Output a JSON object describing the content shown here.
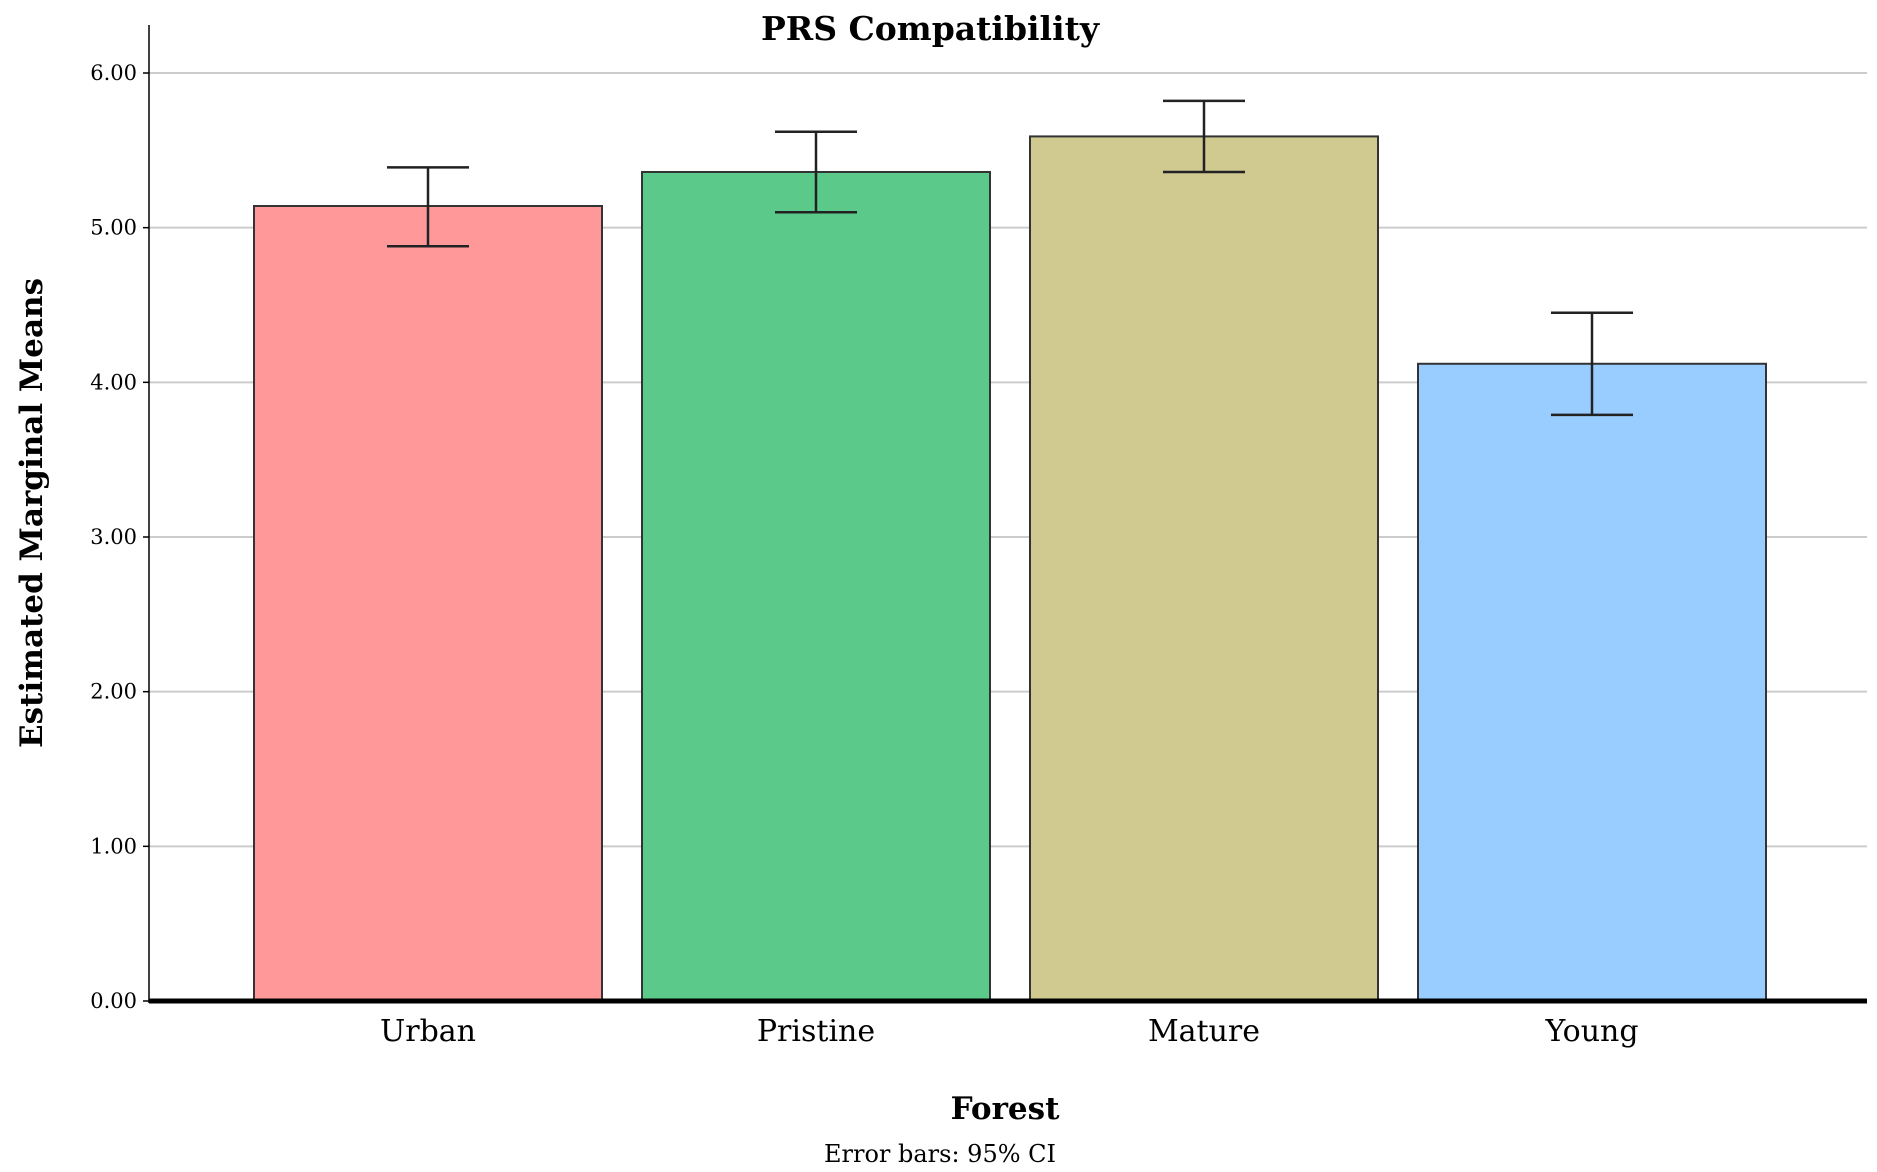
{
  "chart_data": {
    "type": "bar",
    "title": "PRS Compatibility",
    "xlabel": "Forest",
    "ylabel": "Estimated Marginal Means",
    "categories": [
      "Urban",
      "Pristine",
      "Mature",
      "Young"
    ],
    "values": [
      5.14,
      5.36,
      5.59,
      4.12
    ],
    "ci_lower": [
      4.88,
      5.1,
      5.36,
      3.79
    ],
    "ci_upper": [
      5.39,
      5.62,
      5.82,
      4.45
    ],
    "colors": [
      "#ff9999",
      "#5bc98a",
      "#d0ca91",
      "#99ccff"
    ],
    "ylim": [
      0,
      6
    ],
    "yticks": [
      "0.00",
      "1.00",
      "2.00",
      "3.00",
      "4.00",
      "5.00",
      "6.00"
    ],
    "grid": true,
    "note": "Error bars: 95% CI"
  }
}
